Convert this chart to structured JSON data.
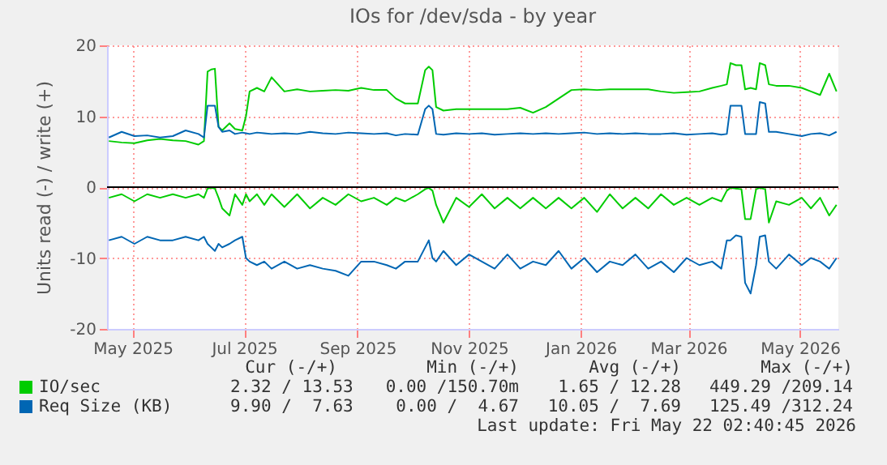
{
  "chart_data": {
    "type": "line",
    "title": "IOs for /dev/sda - by year",
    "ylabel": "Units read (-) / write (+)",
    "x": [
      "2025-04-18",
      "2025-04-25",
      "2025-05-02",
      "2025-05-09",
      "2025-05-16",
      "2025-05-23",
      "2025-05-30",
      "2025-06-06",
      "2025-06-09",
      "2025-06-11",
      "2025-06-13",
      "2025-06-15",
      "2025-06-17",
      "2025-06-19",
      "2025-06-23",
      "2025-06-26",
      "2025-06-30",
      "2025-07-02",
      "2025-07-04",
      "2025-07-08",
      "2025-07-12",
      "2025-07-16",
      "2025-07-23",
      "2025-07-30",
      "2025-08-06",
      "2025-08-13",
      "2025-08-20",
      "2025-08-27",
      "2025-09-03",
      "2025-09-10",
      "2025-09-17",
      "2025-09-22",
      "2025-09-27",
      "2025-10-04",
      "2025-10-08",
      "2025-10-10",
      "2025-10-12",
      "2025-10-14",
      "2025-10-18",
      "2025-10-25",
      "2025-11-01",
      "2025-11-08",
      "2025-11-15",
      "2025-11-22",
      "2025-11-29",
      "2025-12-06",
      "2025-12-13",
      "2025-12-20",
      "2025-12-27",
      "2026-01-03",
      "2026-01-10",
      "2026-01-17",
      "2026-01-24",
      "2026-01-31",
      "2026-02-07",
      "2026-02-14",
      "2026-02-21",
      "2026-02-28",
      "2026-03-07",
      "2026-03-14",
      "2026-03-19",
      "2026-03-22",
      "2026-03-24",
      "2026-03-27",
      "2026-03-30",
      "2026-04-01",
      "2026-04-04",
      "2026-04-07",
      "2026-04-09",
      "2026-04-12",
      "2026-04-14",
      "2026-04-18",
      "2026-04-25",
      "2026-05-02",
      "2026-05-07",
      "2026-05-12",
      "2026-05-17",
      "2026-05-21"
    ],
    "series": [
      {
        "color": "#00cc00",
        "values": [
          -1.5,
          -1.0,
          -2.0,
          -1.0,
          -1.5,
          -1.0,
          -1.5,
          -1.0,
          -1.5,
          -0.2,
          -0.1,
          -0.2,
          -1.5,
          -3.0,
          -4.0,
          -1.0,
          -2.5,
          -1.0,
          -2.0,
          -1.0,
          -2.5,
          -1.0,
          -2.8,
          -1.0,
          -3.0,
          -1.5,
          -2.5,
          -1.0,
          -2.0,
          -1.5,
          -2.5,
          -1.5,
          -2.0,
          -1.0,
          -0.3,
          -0.1,
          -0.5,
          -2.5,
          -5.0,
          -1.5,
          -2.8,
          -1.0,
          -3.0,
          -1.5,
          -3.0,
          -1.5,
          -3.0,
          -1.5,
          -3.0,
          -1.5,
          -3.5,
          -1.0,
          -3.0,
          -1.5,
          -3.0,
          -1.0,
          -2.5,
          -1.5,
          -2.5,
          -1.5,
          -2.0,
          -0.5,
          -0.1,
          -0.2,
          -0.3,
          -4.5,
          -4.5,
          -0.3,
          -0.1,
          -0.3,
          -5.0,
          -2.0,
          -2.5,
          -1.5,
          -3.0,
          -1.5,
          -4.0,
          -2.5
        ]
      },
      {
        "name": "IO/sec",
        "color": "#00cc00",
        "values": [
          6.5,
          6.3,
          6.2,
          6.6,
          6.8,
          6.6,
          6.5,
          6.0,
          6.5,
          16.3,
          16.6,
          16.7,
          8.5,
          8.0,
          9.0,
          8.2,
          8.0,
          10,
          13.5,
          14.0,
          13.5,
          15.5,
          13.5,
          13.8,
          13.5,
          13.6,
          13.7,
          13.6,
          14.0,
          13.7,
          13.7,
          12.5,
          11.8,
          11.8,
          16.5,
          17,
          16.5,
          11.3,
          10.8,
          11,
          11,
          11,
          11,
          11,
          11.2,
          10.5,
          11.3,
          12.5,
          13.7,
          13.8,
          13.7,
          13.8,
          13.8,
          13.8,
          13.8,
          13.5,
          13.3,
          13.4,
          13.5,
          14.0,
          14.3,
          14.5,
          17.5,
          17.2,
          17.2,
          13.8,
          14,
          13.8,
          17.5,
          17.2,
          14.5,
          14.3,
          14.3,
          14.0,
          13.5,
          13.0,
          16.0,
          13.5
        ]
      },
      {
        "color": "#0066b3",
        "values": [
          -7.5,
          -7.0,
          -8.0,
          -7.0,
          -7.5,
          -7.5,
          -7.0,
          -7.5,
          -7.0,
          -8.0,
          -8.5,
          -9.0,
          -8.0,
          -8.5,
          -8.0,
          -7.5,
          -7.0,
          -10,
          -10.5,
          -11.0,
          -10.5,
          -11.5,
          -10.5,
          -11.5,
          -11.0,
          -11.5,
          -11.8,
          -12.5,
          -10.5,
          -10.5,
          -11.0,
          -11.5,
          -10.5,
          -10.5,
          -8.5,
          -7.5,
          -10,
          -10.5,
          -9.0,
          -11.0,
          -9.5,
          -10.5,
          -11.5,
          -9.5,
          -11.5,
          -10.5,
          -11,
          -9.0,
          -11.5,
          -10.0,
          -12.0,
          -10.5,
          -11.0,
          -9.5,
          -11.5,
          -10.5,
          -12.0,
          -10.0,
          -11.0,
          -10.5,
          -11.5,
          -7.5,
          -7.5,
          -6.8,
          -7.0,
          -13.5,
          -15.0,
          -11,
          -7.0,
          -6.8,
          -10.5,
          -11.5,
          -9.5,
          -11.0,
          -10.0,
          -10.5,
          -11.5,
          -10.0
        ]
      },
      {
        "name": "Req Size (KB)",
        "color": "#0066b3",
        "values": [
          7.0,
          7.8,
          7.2,
          7.3,
          7.0,
          7.2,
          8.0,
          7.5,
          7.0,
          11.5,
          11.5,
          11.5,
          8.5,
          7.8,
          8.0,
          7.5,
          7.7,
          7.6,
          7.5,
          7.7,
          7.6,
          7.5,
          7.6,
          7.5,
          7.8,
          7.6,
          7.5,
          7.7,
          7.6,
          7.5,
          7.6,
          7.3,
          7.5,
          7.4,
          11,
          11.5,
          11,
          7.5,
          7.4,
          7.6,
          7.5,
          7.6,
          7.4,
          7.5,
          7.6,
          7.5,
          7.6,
          7.5,
          7.6,
          7.7,
          7.5,
          7.6,
          7.5,
          7.6,
          7.5,
          7.5,
          7.6,
          7.4,
          7.5,
          7.6,
          7.4,
          7.5,
          11.5,
          11.5,
          11.5,
          7.5,
          7.5,
          7.5,
          12,
          11.8,
          7.8,
          7.8,
          7.5,
          7.2,
          7.5,
          7.6,
          7.3,
          7.8
        ]
      }
    ],
    "xlim": [
      "2025-04-17",
      "2026-05-22"
    ],
    "xticks": [
      {
        "value": "2025-05-01",
        "label": "May 2025"
      },
      {
        "value": "2025-07-01",
        "label": "Jul 2025"
      },
      {
        "value": "2025-09-01",
        "label": "Sep 2025"
      },
      {
        "value": "2025-11-01",
        "label": "Nov 2025"
      },
      {
        "value": "2026-01-01",
        "label": "Jan 2026"
      },
      {
        "value": "2026-03-01",
        "label": "Mar 2026"
      },
      {
        "value": "2026-05-01",
        "label": "May 2026"
      }
    ],
    "ylim": [
      -20,
      20
    ],
    "yticks": [
      -20,
      -10,
      0,
      10,
      20
    ],
    "ref_lines": [
      {
        "axis": "y",
        "value": 0,
        "color": "#000000"
      }
    ],
    "grid": true,
    "legend": "bottom",
    "line_style": "solid",
    "annotations": [
      "Cur (-/+)",
      "Min (-/+)",
      "Avg (-/+)",
      "Max (-/+)",
      "2.32 / 13.53",
      "0.00 /150.70m",
      "1.65 / 12.28",
      "449.29 /209.14",
      "9.90 /  7.63",
      "0.00 /  4.67",
      "10.05 /  7.69",
      "125.49 /312.24",
      "Last update: Fri May 22 02:40:45 2026"
    ]
  }
}
